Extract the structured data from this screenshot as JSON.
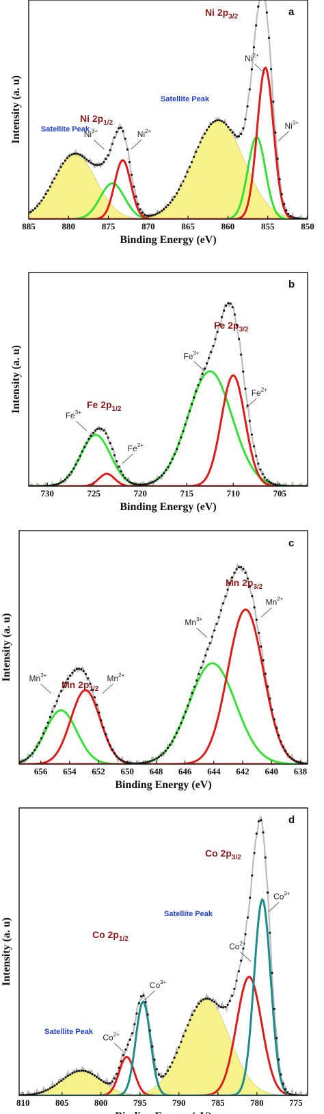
{
  "colors": {
    "red": "#dd1c1c",
    "green": "#33e033",
    "teal": "#1f8a8a",
    "grey": "#bdbdbd",
    "dots": "#111111",
    "yellow": "#f7f27e",
    "title": "#8b1a1a",
    "satellite": "#1f3fcc"
  },
  "chart_data": [
    {
      "type": "line",
      "panel": "a",
      "xlabel": "Binding Energy (eV)",
      "ylabel": "Intensity (a. u)",
      "xlim": [
        885,
        850
      ],
      "ylim": [
        0,
        1.0
      ],
      "x_ticks": [
        "885",
        "880",
        "875",
        "870",
        "865",
        "860",
        "855",
        "850"
      ],
      "series": [
        {
          "color": "yellow",
          "fill": true,
          "peaks": [
            {
              "center": 879.2,
              "height": 0.31,
              "fwhm": 6.2
            }
          ]
        },
        {
          "color": "yellow",
          "fill": true,
          "peaks": [
            {
              "center": 861.2,
              "height": 0.47,
              "fwhm": 7.5
            }
          ]
        },
        {
          "color": "green",
          "peaks": [
            {
              "center": 874.5,
              "height": 0.17,
              "fwhm": 3.6
            }
          ]
        },
        {
          "color": "red",
          "peaks": [
            {
              "center": 873.2,
              "height": 0.28,
              "fwhm": 2.4
            }
          ]
        },
        {
          "color": "green",
          "peaks": [
            {
              "center": 856.4,
              "height": 0.39,
              "fwhm": 2.6
            }
          ]
        },
        {
          "color": "red",
          "peaks": [
            {
              "center": 855.3,
              "height": 0.72,
              "fwhm": 2.4
            }
          ]
        },
        {
          "color": "dots",
          "dotted": true,
          "sum": true
        }
      ],
      "annotations": {
        "title1": "Ni 2p3/2",
        "title2": "Ni 2p1/2",
        "sat1": "Satellite Peak",
        "sat2": "Satellite Peak",
        "lbl": [
          {
            "text": "Ni3+",
            "x": 877.2,
            "y": 0.39
          },
          {
            "text": "Ni2+",
            "x": 870.5,
            "y": 0.39
          },
          {
            "text": "Ni2+",
            "x": 857.0,
            "y": 0.75
          },
          {
            "text": "Ni3+",
            "x": 852.0,
            "y": 0.43
          }
        ]
      }
    },
    {
      "type": "line",
      "panel": "b",
      "xlabel": "Binding Energy (eV)",
      "ylabel": "Intensity (a. u)",
      "xlim": [
        732,
        702
      ],
      "ylim": [
        0,
        1.0
      ],
      "x_ticks": [
        "730",
        "725",
        "720",
        "715",
        "710",
        "705"
      ],
      "series": [
        {
          "color": "green",
          "peaks": [
            {
              "center": 724.8,
              "height": 0.25,
              "fwhm": 3.8
            }
          ]
        },
        {
          "color": "red",
          "peaks": [
            {
              "center": 723.6,
              "height": 0.06,
              "fwhm": 2.0
            }
          ]
        },
        {
          "color": "green",
          "peaks": [
            {
              "center": 712.5,
              "height": 0.56,
              "fwhm": 5.6
            }
          ]
        },
        {
          "color": "red",
          "peaks": [
            {
              "center": 710.0,
              "height": 0.54,
              "fwhm": 3.0
            }
          ]
        },
        {
          "color": "dots",
          "dotted": true,
          "sum": true
        }
      ],
      "annotations": {
        "title1": "Fe 2p3/2",
        "title2": "Fe 2p1/2",
        "lbl": [
          {
            "text": "Fe3+",
            "x": 727.2,
            "y": 0.33
          },
          {
            "text": "Fe2+",
            "x": 720.5,
            "y": 0.17
          },
          {
            "text": "Fe3+",
            "x": 714.5,
            "y": 0.62
          },
          {
            "text": "Fe2+",
            "x": 707.2,
            "y": 0.44
          }
        ]
      }
    },
    {
      "type": "line",
      "panel": "c",
      "xlabel": "Binding Energy (eV)",
      "ylabel": "Intensity (a. u)",
      "xlim": [
        657.5,
        637.5
      ],
      "ylim": [
        0,
        1.0
      ],
      "x_ticks": [
        "656",
        "654",
        "652",
        "650",
        "648",
        "646",
        "644",
        "642",
        "640",
        "638"
      ],
      "series": [
        {
          "color": "green",
          "peaks": [
            {
              "center": 654.6,
              "height": 0.24,
              "fwhm": 2.6
            }
          ]
        },
        {
          "color": "red",
          "peaks": [
            {
              "center": 652.9,
              "height": 0.33,
              "fwhm": 2.4
            }
          ]
        },
        {
          "color": "green",
          "peaks": [
            {
              "center": 644.1,
              "height": 0.45,
              "fwhm": 3.8
            }
          ]
        },
        {
          "color": "red",
          "peaks": [
            {
              "center": 641.8,
              "height": 0.69,
              "fwhm": 2.9
            }
          ]
        },
        {
          "color": "dots",
          "dotted": true,
          "sum": true
        }
      ],
      "annotations": {
        "title1": "Mn 2p3/2",
        "title2": "Mn 2p1/2",
        "lbl": [
          {
            "text": "Mn3+",
            "x": 656.2,
            "y": 0.37
          },
          {
            "text": "Mn2+",
            "x": 650.8,
            "y": 0.37
          },
          {
            "text": "Mn3+",
            "x": 645.4,
            "y": 0.62
          },
          {
            "text": "Mn2+",
            "x": 639.8,
            "y": 0.71
          }
        ]
      }
    },
    {
      "type": "line",
      "panel": "d",
      "xlabel": "Binding Energy (eV)",
      "ylabel": "Intensity (a. u)",
      "xlim": [
        810.5,
        773.5
      ],
      "ylim": [
        0,
        1.0
      ],
      "x_ticks": [
        "810",
        "805",
        "800",
        "795",
        "790",
        "785",
        "780",
        "775"
      ],
      "series": [
        {
          "color": "yellow",
          "fill": true,
          "peaks": [
            {
              "center": 802.5,
              "height": 0.09,
              "fwhm": 6.0
            }
          ]
        },
        {
          "color": "yellow",
          "fill": true,
          "peaks": [
            {
              "center": 786.5,
              "height": 0.35,
              "fwhm": 7.0
            }
          ]
        },
        {
          "color": "red",
          "peaks": [
            {
              "center": 796.7,
              "height": 0.14,
              "fwhm": 2.3
            }
          ]
        },
        {
          "color": "teal",
          "peaks": [
            {
              "center": 794.6,
              "height": 0.34,
              "fwhm": 2.2
            }
          ]
        },
        {
          "color": "red",
          "peaks": [
            {
              "center": 781.0,
              "height": 0.43,
              "fwhm": 3.8
            }
          ]
        },
        {
          "color": "teal",
          "peaks": [
            {
              "center": 779.3,
              "height": 0.71,
              "fwhm": 2.5
            }
          ]
        },
        {
          "color": "dots",
          "dotted": true,
          "sum": true
        }
      ],
      "annotations": {
        "title1": "Co 2p3/2",
        "title2": "Co 2p1/2",
        "sat1": "Satellite Peak",
        "sat2": "Satellite Peak",
        "lbl": [
          {
            "text": "Co2+",
            "x": 798.7,
            "y": 0.2
          },
          {
            "text": "Co3+",
            "x": 792.7,
            "y": 0.39
          },
          {
            "text": "Co2+",
            "x": 782.5,
            "y": 0.53
          },
          {
            "text": "Co3+",
            "x": 776.8,
            "y": 0.71
          }
        ]
      }
    }
  ]
}
